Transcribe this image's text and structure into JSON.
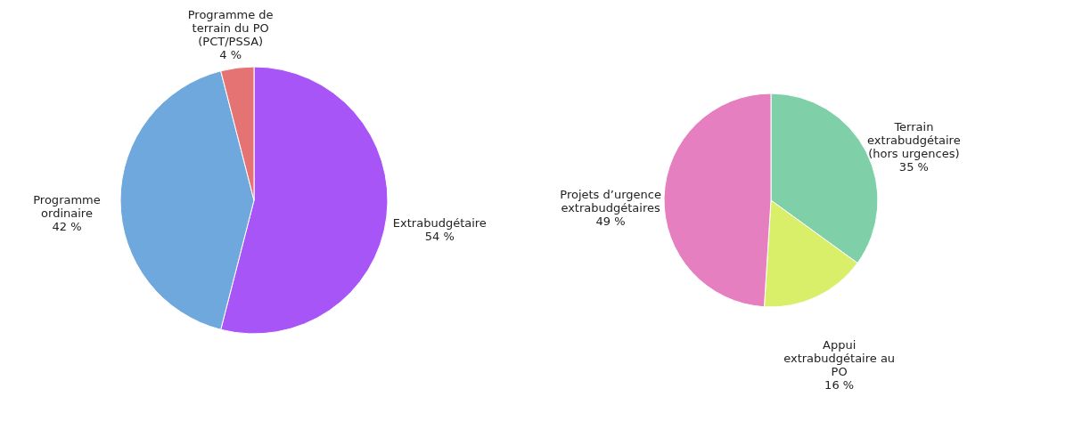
{
  "chart_data": [
    {
      "type": "pie",
      "categories": [
        "Extrabudgétaire",
        "Programme ordinaire",
        "Programme de terrain du PO (PCT/PSSA)"
      ],
      "values": [
        54,
        42,
        4
      ],
      "value_labels": [
        "54 %",
        "42 %",
        "4 %"
      ],
      "colors": [
        "#a855f7",
        "#6fa8dc",
        "#e57373"
      ]
    },
    {
      "type": "pie",
      "categories": [
        "Terrain extrabudgétaire (hors urgences)",
        "Appui extrabudgétaire au PO",
        "Projets d’urgence extrabudgétaires"
      ],
      "values": [
        35,
        16,
        49
      ],
      "value_labels": [
        "35 %",
        "16 %",
        "49 %"
      ],
      "colors": [
        "#7fcfa8",
        "#d9ef6a",
        "#e57fc0"
      ]
    }
  ]
}
